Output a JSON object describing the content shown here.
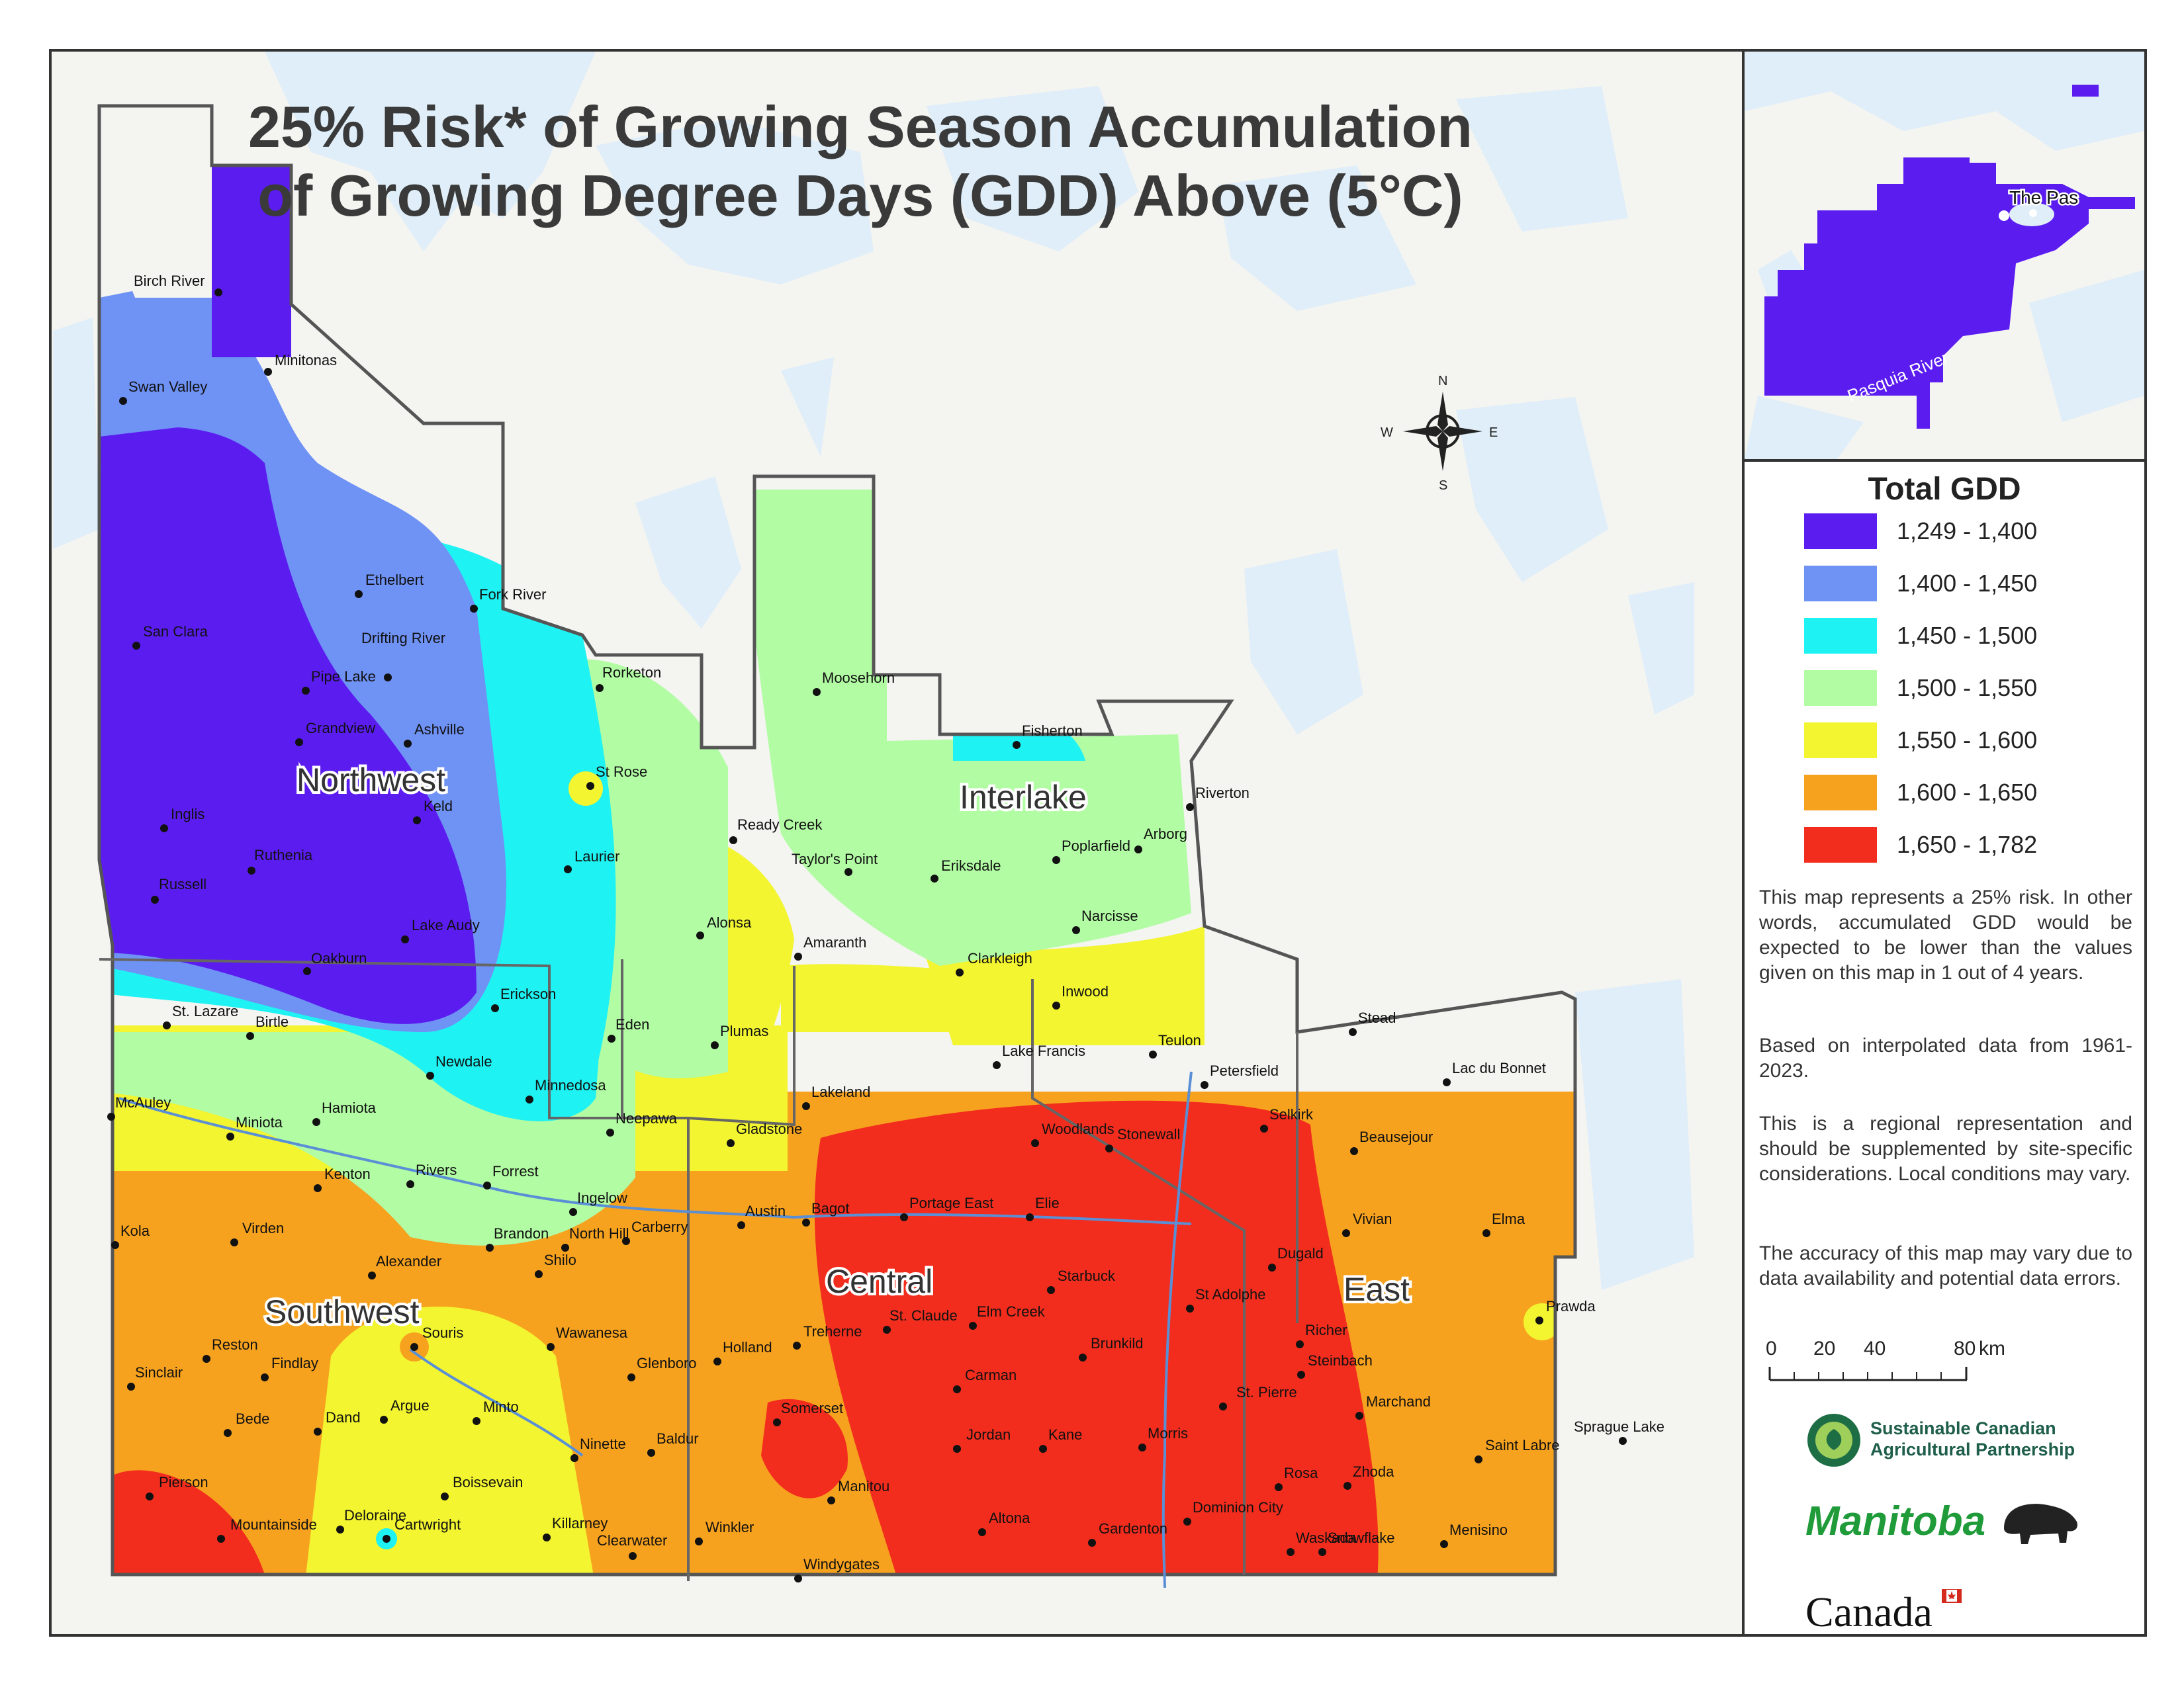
{
  "title": {
    "line1": "25% Risk* of Growing Season Accumulation",
    "line2": "of Growing Degree Days (GDD) Above (5°C)"
  },
  "compass": {
    "n": "N",
    "s": "S",
    "e": "E",
    "w": "W"
  },
  "regions": [
    "Northwest",
    "Interlake",
    "Southwest",
    "Central",
    "East"
  ],
  "cities": [
    "Birch River",
    "Minitonas",
    "Swan Valley",
    "Ethelbert",
    "Fork River",
    "San Clara",
    "Drifting River",
    "Pipe Lake",
    "Rorketon",
    "Moosehorn",
    "Grandview",
    "Ashville",
    "Fisherton",
    "St Rose",
    "Riverton",
    "Keld",
    "Inglis",
    "Ready Creek",
    "Poplarfield",
    "Arborg",
    "Laurier",
    "Taylor's Point",
    "Eriksdale",
    "Ruthenia",
    "Russell",
    "Alonsa",
    "Narcisse",
    "Lake Audy",
    "Amaranth",
    "Clarkleigh",
    "Oakburn",
    "Inwood",
    "Erickson",
    "St. Lazare",
    "Birtle",
    "Eden",
    "Plumas",
    "Stead",
    "Teulon",
    "Newdale",
    "Lake Francis",
    "Petersfield",
    "Lac du Bonnet",
    "Minnedosa",
    "Lakeland",
    "McAuley",
    "Hamiota",
    "Neepawa",
    "Woodlands",
    "Selkirk",
    "Miniota",
    "Gladstone",
    "Stonewall",
    "Beausejour",
    "Kenton",
    "Rivers",
    "Forrest",
    "Ingelow",
    "Portage East",
    "Elie",
    "Austin",
    "Bagot",
    "Vivian",
    "Elma",
    "Kola",
    "Virden",
    "Brandon",
    "North Hill",
    "Carberry",
    "Dugald",
    "Alexander",
    "Shilo",
    "Starbuck",
    "St Adolphe",
    "Prawda",
    "Wawanesa",
    "Elm Creek",
    "St. Claude",
    "Souris",
    "Treherne",
    "Richer",
    "Reston",
    "Holland",
    "Brunkild",
    "Steinbach",
    "Findlay",
    "Glenboro",
    "Sinclair",
    "Carman",
    "St. Pierre",
    "Marchand",
    "Argue",
    "Minto",
    "Somerset",
    "Sprague Lake",
    "Bede",
    "Dand",
    "Jordan",
    "Kane",
    "Morris",
    "Saint Labre",
    "Baldur",
    "Ninette",
    "Zhoda",
    "Pierson",
    "Boissevain",
    "Manitou",
    "Rosa",
    "Deloraine",
    "Killarney",
    "Dominion City",
    "Menisino",
    "Waskada",
    "Mountainside",
    "Cartwright",
    "Clearwater",
    "Winkler",
    "Altona",
    "Gardenton",
    "Snowflake",
    "Windygates"
  ],
  "inset": {
    "city": "The Pas",
    "river": "Pasquia River"
  },
  "legend": {
    "title": "Total GDD",
    "classes": [
      {
        "label": "1,249 - 1,400",
        "color": "#5b1cf0"
      },
      {
        "label": "1,400 - 1,450",
        "color": "#6f92f5"
      },
      {
        "label": "1,450 - 1,500",
        "color": "#1ff2f2"
      },
      {
        "label": "1,500 - 1,550",
        "color": "#b2fca4"
      },
      {
        "label": "1,550 - 1,600",
        "color": "#f2f530"
      },
      {
        "label": "1,600 - 1,650",
        "color": "#f7a21f"
      },
      {
        "label": "1,650 - 1,782",
        "color": "#f22d1e"
      }
    ]
  },
  "notes": [
    "This map represents a 25% risk. In other words, accumulated GDD would be expected to be lower than the values given on this map in 1 out of 4 years.",
    "Based on interpolated data from 1961-2023.",
    "This is a regional representation and should be supplemented by site-specific considerations. Local conditions may vary.",
    "The accuracy of this map may vary due to data availability and potential data errors."
  ],
  "scale": {
    "ticks": [
      "0",
      "20",
      "40",
      "80"
    ],
    "unit": "km"
  },
  "sponsors": {
    "scap_line1": "Sustainable Canadian",
    "scap_line2": "Agricultural Partnership",
    "manitoba": "Manitoba",
    "canada": "Canada"
  },
  "colors": {
    "water": "#dfeef8",
    "land": "#f4f4f1",
    "border": "#555555"
  }
}
